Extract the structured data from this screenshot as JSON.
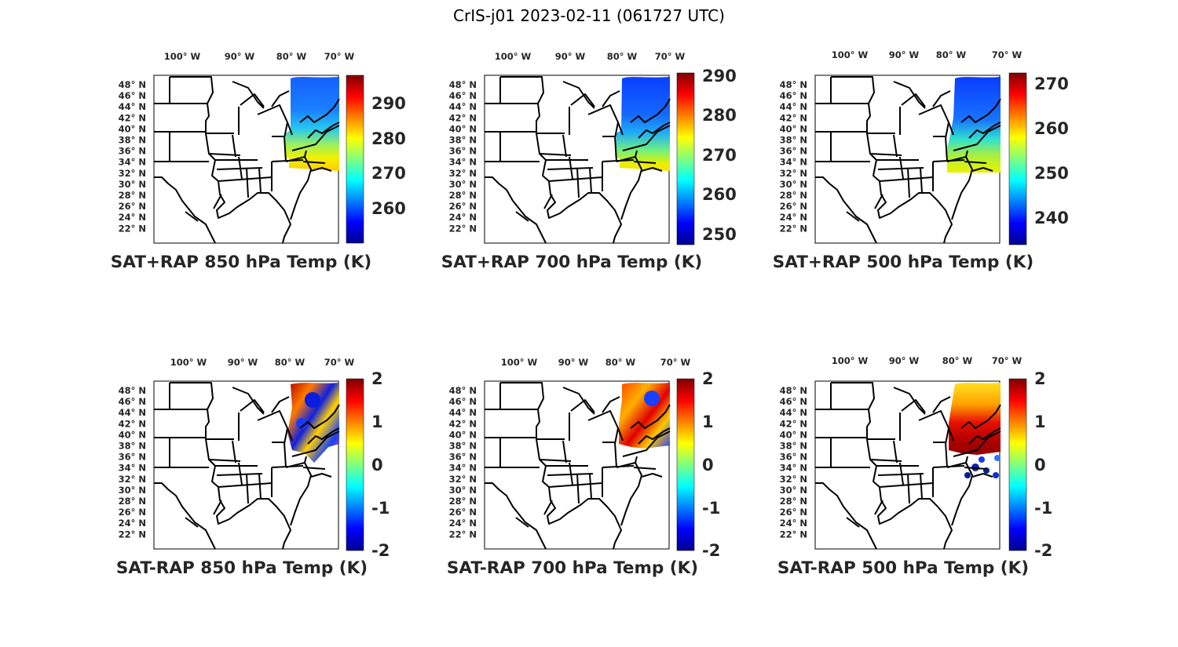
{
  "figure": {
    "title": "CrIS-j01 2023-02-11 (061727 UTC)"
  },
  "colors": {
    "jet": [
      "#00008f",
      "#0000ff",
      "#0080ff",
      "#00ffff",
      "#80ff80",
      "#ffff00",
      "#ff8000",
      "#ff0000",
      "#800000"
    ],
    "frame": "#000000",
    "state_lines": "#000000"
  },
  "chart_data": [
    {
      "type": "heatmap",
      "title": "SAT+RAP 850 hPa Temp (K)",
      "lon_ticks": [
        "100° W",
        "90° W",
        "80° W",
        "70° W"
      ],
      "lat_ticks": [
        "48° N",
        "46° N",
        "44° N",
        "42° N",
        "40° N",
        "38° N",
        "36° N",
        "34° N",
        "32° N",
        "30° N",
        "28° N",
        "26° N",
        "24° N",
        "22° N"
      ],
      "colorbar": {
        "ticks": [
          "290",
          "280",
          "270",
          "260"
        ],
        "range": [
          250,
          298
        ]
      },
      "overlay_region": "Northeast US and adjacent Atlantic (approx. 80°W-68°W, 35°N-49°N)",
      "overlay_values": "about 258-262 K in north, rising to about 285-290 K in south"
    },
    {
      "type": "heatmap",
      "title": "SAT+RAP 700 hPa Temp (K)",
      "lon_ticks": [
        "100° W",
        "90° W",
        "80° W",
        "70° W"
      ],
      "lat_ticks": [
        "48° N",
        "46° N",
        "44° N",
        "42° N",
        "40° N",
        "38° N",
        "36° N",
        "34° N",
        "32° N",
        "30° N",
        "28° N",
        "26° N",
        "24° N",
        "22° N"
      ],
      "colorbar": {
        "ticks": [
          "290",
          "280",
          "270",
          "260",
          "250"
        ],
        "range": [
          247,
          291
        ]
      },
      "overlay_region": "Northeast US and adjacent Atlantic (approx. 80°W-68°W, 35°N-49°N)",
      "overlay_values": "about 255-258 K in north, rising to about 275-280 K in south"
    },
    {
      "type": "heatmap",
      "title": "SAT+RAP 500 hPa Temp (K)",
      "lon_ticks": [
        "100° W",
        "90° W",
        "80° W",
        "70° W"
      ],
      "lat_ticks": [
        "48° N",
        "46° N",
        "44° N",
        "42° N",
        "40° N",
        "38° N",
        "36° N",
        "34° N",
        "32° N",
        "30° N",
        "28° N",
        "26° N",
        "24° N",
        "22° N"
      ],
      "colorbar": {
        "ticks": [
          "270",
          "260",
          "250",
          "240"
        ],
        "range": [
          234,
          272
        ]
      },
      "overlay_region": "Northeast US and adjacent Atlantic (approx. 80°W-68°W, 35°N-49°N)",
      "overlay_values": "about 240-245 K in north, rising to about 255-260 K in south"
    },
    {
      "type": "heatmap",
      "title": "SAT-RAP 850 hPa Temp (K)",
      "lon_ticks": [
        "100° W",
        "90° W",
        "80° W",
        "70° W"
      ],
      "lat_ticks": [
        "48° N",
        "46° N",
        "44° N",
        "42° N",
        "40° N",
        "38° N",
        "36° N",
        "34° N",
        "32° N",
        "30° N",
        "28° N",
        "26° N",
        "24° N",
        "22° N"
      ],
      "colorbar": {
        "ticks": [
          "2",
          "1",
          "0",
          "-1",
          "-2"
        ],
        "range": [
          -2,
          2
        ]
      },
      "overlay_region": "Northeast US (approx. 80°W-68°W, 40°N-49°N), coastal points to 37°N",
      "overlay_values": "mixed -2 to 2 K; strong positive in northwest, negative near Great Lakes and coast"
    },
    {
      "type": "heatmap",
      "title": "SAT-RAP 700 hPa Temp (K)",
      "lon_ticks": [
        "100° W",
        "90° W",
        "80° W",
        "70° W"
      ],
      "lat_ticks": [
        "48° N",
        "46° N",
        "44° N",
        "42° N",
        "40° N",
        "38° N",
        "36° N",
        "34° N",
        "32° N",
        "30° N",
        "28° N",
        "26° N",
        "24° N",
        "22° N"
      ],
      "colorbar": {
        "ticks": [
          "2",
          "1",
          "0",
          "-1",
          "-2"
        ],
        "range": [
          -2,
          2
        ]
      },
      "overlay_region": "Northeast US (approx. 80°W-68°W, 40°N-49°N)",
      "overlay_values": "mostly 0.5 to 2 K, negative patches east; about 2 K in southwest band"
    },
    {
      "type": "heatmap",
      "title": "SAT-RAP 500 hPa Temp (K)",
      "lon_ticks": [
        "100° W",
        "90° W",
        "80° W",
        "70° W"
      ],
      "lat_ticks": [
        "48° N",
        "46° N",
        "44° N",
        "42° N",
        "40° N",
        "38° N",
        "36° N",
        "34° N",
        "32° N",
        "30° N",
        "28° N",
        "26° N",
        "24° N",
        "22° N"
      ],
      "colorbar": {
        "ticks": [
          "2",
          "1",
          "0",
          "-1",
          "-2"
        ],
        "range": [
          -2,
          2
        ]
      },
      "overlay_region": "Northeast US and Atlantic (approx. 80°W-68°W, 35°N-49°N)",
      "overlay_values": "about 0.5 to 1.5 K north, about 2 K mid band, about -2 K in southern ocean dots"
    }
  ]
}
